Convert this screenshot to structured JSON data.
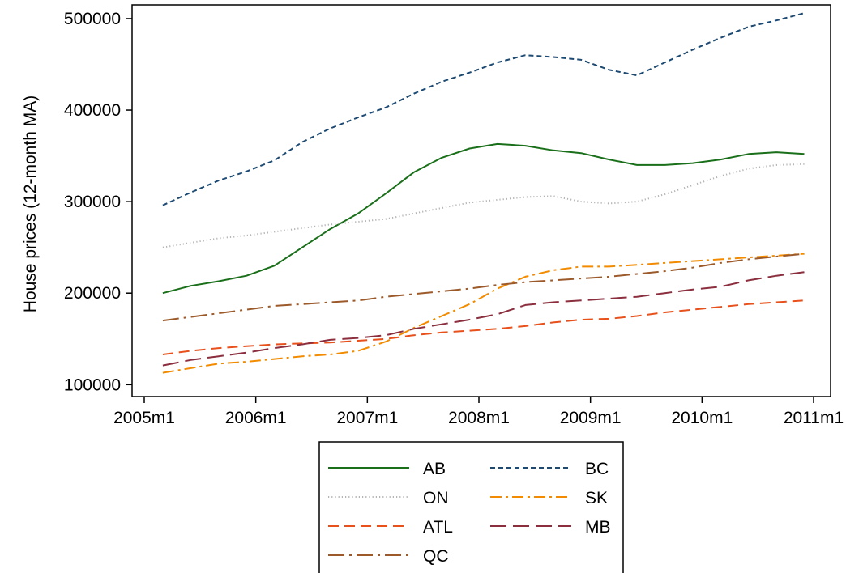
{
  "chart_data": {
    "type": "line",
    "title": "",
    "xlabel": "",
    "ylabel": "House prices (12-month MA)",
    "x_ticks": [
      "2005m1",
      "2006m1",
      "2007m1",
      "2008m1",
      "2009m1",
      "2010m1",
      "2011m1"
    ],
    "x_range": [
      "2005m1",
      "2011m1"
    ],
    "y_ticks": [
      100000,
      200000,
      300000,
      400000,
      500000
    ],
    "y_tick_labels": [
      "100000",
      "200000",
      "300000",
      "400000",
      "500000"
    ],
    "ylim": [
      87000,
      515000
    ],
    "grid": false,
    "legend_position": "bottom",
    "x": [
      "2005m3",
      "2005m6",
      "2005m9",
      "2005m12",
      "2006m3",
      "2006m6",
      "2006m9",
      "2006m12",
      "2007m3",
      "2007m6",
      "2007m9",
      "2007m12",
      "2008m3",
      "2008m6",
      "2008m9",
      "2008m12",
      "2009m3",
      "2009m6",
      "2009m9",
      "2009m12",
      "2010m3",
      "2010m6",
      "2010m9",
      "2010m12"
    ],
    "series": [
      {
        "name": "AB",
        "color": "#1a6f1a",
        "dash": "solid",
        "values": [
          200000,
          208000,
          213000,
          219000,
          230000,
          250000,
          270000,
          287000,
          309000,
          332000,
          348000,
          358000,
          363000,
          361000,
          356000,
          353000,
          346000,
          340000,
          340000,
          342000,
          346000,
          352000,
          354000,
          352000
        ]
      },
      {
        "name": "BC",
        "color": "#1d4a72",
        "dash": "short-dash",
        "values": [
          296000,
          310000,
          323000,
          333000,
          345000,
          365000,
          380000,
          392000,
          403000,
          418000,
          431000,
          441000,
          452000,
          460000,
          458000,
          455000,
          444000,
          438000,
          452000,
          466000,
          479000,
          491000,
          498000,
          506000
        ]
      },
      {
        "name": "ON",
        "color": "#b4b4b4",
        "dash": "dot",
        "values": [
          250000,
          255000,
          260000,
          263000,
          267000,
          271000,
          275000,
          278000,
          281000,
          287000,
          293000,
          299000,
          302000,
          305000,
          306000,
          300000,
          298000,
          300000,
          308000,
          318000,
          328000,
          336000,
          340000,
          341000
        ]
      },
      {
        "name": "SK",
        "color": "#f28b00",
        "dash": "dash-dot",
        "values": [
          113000,
          118000,
          123000,
          125000,
          128000,
          131000,
          133000,
          137000,
          147000,
          162000,
          175000,
          188000,
          205000,
          218000,
          225000,
          229000,
          229000,
          231000,
          233000,
          235000,
          237000,
          239000,
          241000,
          243000
        ]
      },
      {
        "name": "ATL",
        "color": "#e8501c",
        "dash": "dash",
        "values": [
          133000,
          137000,
          140000,
          142000,
          144000,
          145000,
          146000,
          148000,
          150000,
          154000,
          157000,
          159000,
          161000,
          164000,
          168000,
          171000,
          172000,
          175000,
          179000,
          182000,
          185000,
          188000,
          190000,
          192000
        ]
      },
      {
        "name": "MB",
        "color": "#8b2e3e",
        "dash": "long-dash",
        "values": [
          121000,
          127000,
          131000,
          135000,
          140000,
          144000,
          149000,
          151000,
          154000,
          161000,
          166000,
          171000,
          177000,
          187000,
          190000,
          192000,
          194000,
          196000,
          200000,
          204000,
          207000,
          214000,
          219000,
          223000
        ]
      },
      {
        "name": "QC",
        "color": "#9c5a2b",
        "dash": "long-dash-dot",
        "values": [
          170000,
          174000,
          178000,
          182000,
          186000,
          188000,
          190000,
          192000,
          196000,
          199000,
          202000,
          205000,
          209000,
          212000,
          214000,
          216000,
          218000,
          221000,
          224000,
          228000,
          233000,
          237000,
          240000,
          243000
        ]
      }
    ]
  }
}
